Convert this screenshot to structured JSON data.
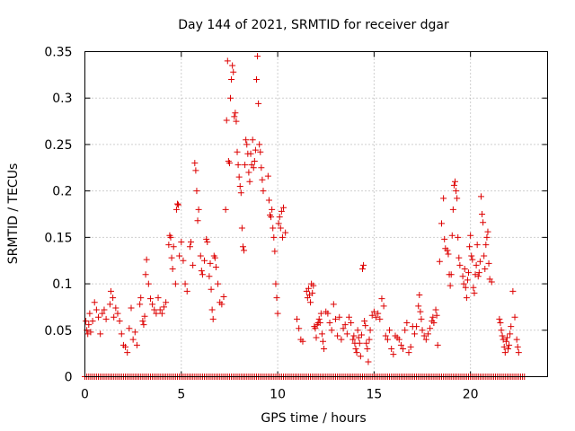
{
  "chart_data": {
    "type": "scatter",
    "title": "Day 144 of 2021, SRMTID for receiver dgar",
    "xlabel": "GPS time / hours",
    "ylabel": "SRMTID / TECUs",
    "xlim": [
      0,
      24
    ],
    "ylim": [
      0,
      0.35
    ],
    "x_ticks": [
      0,
      5,
      10,
      15,
      20
    ],
    "x_tick_labels": [
      "0",
      "5",
      "10",
      "15",
      "20"
    ],
    "y_ticks": [
      0,
      0.05,
      0.1,
      0.15,
      0.2,
      0.25,
      0.3,
      0.35
    ],
    "y_tick_labels": [
      "0",
      "0.05",
      "0.1",
      "0.15",
      "0.2",
      "0.25",
      "0.3",
      "0.35"
    ],
    "grid": true,
    "legend": "none",
    "marker": "+",
    "color": "#dd0000",
    "baseline": {
      "y": 0,
      "x_start": 0.0,
      "x_end": 22.8,
      "step": 0.1
    },
    "series": [
      {
        "name": "SRMTID",
        "points": [
          [
            0.05,
            0.06
          ],
          [
            0.1,
            0.05
          ],
          [
            0.15,
            0.046
          ],
          [
            0.2,
            0.056
          ],
          [
            0.25,
            0.068
          ],
          [
            0.3,
            0.048
          ],
          [
            0.4,
            0.06
          ],
          [
            0.5,
            0.08
          ],
          [
            0.6,
            0.072
          ],
          [
            0.7,
            0.064
          ],
          [
            0.8,
            0.046
          ],
          [
            0.9,
            0.068
          ],
          [
            1.0,
            0.072
          ],
          [
            1.1,
            0.062
          ],
          [
            1.3,
            0.078
          ],
          [
            1.35,
            0.092
          ],
          [
            1.45,
            0.085
          ],
          [
            1.5,
            0.064
          ],
          [
            1.6,
            0.074
          ],
          [
            1.7,
            0.068
          ],
          [
            1.8,
            0.06
          ],
          [
            1.9,
            0.046
          ],
          [
            2.0,
            0.034
          ],
          [
            2.1,
            0.032
          ],
          [
            2.2,
            0.026
          ],
          [
            2.3,
            0.052
          ],
          [
            2.4,
            0.074
          ],
          [
            2.5,
            0.04
          ],
          [
            2.6,
            0.048
          ],
          [
            2.7,
            0.034
          ],
          [
            2.85,
            0.078
          ],
          [
            2.9,
            0.085
          ],
          [
            3.0,
            0.06
          ],
          [
            3.05,
            0.056
          ],
          [
            3.1,
            0.065
          ],
          [
            3.15,
            0.11
          ],
          [
            3.2,
            0.126
          ],
          [
            3.3,
            0.1
          ],
          [
            3.4,
            0.084
          ],
          [
            3.5,
            0.078
          ],
          [
            3.6,
            0.072
          ],
          [
            3.7,
            0.068
          ],
          [
            3.8,
            0.085
          ],
          [
            3.9,
            0.072
          ],
          [
            4.0,
            0.068
          ],
          [
            4.1,
            0.075
          ],
          [
            4.2,
            0.08
          ],
          [
            4.35,
            0.142
          ],
          [
            4.4,
            0.152
          ],
          [
            4.45,
            0.15
          ],
          [
            4.5,
            0.128
          ],
          [
            4.55,
            0.116
          ],
          [
            4.6,
            0.14
          ],
          [
            4.7,
            0.1
          ],
          [
            4.75,
            0.18
          ],
          [
            4.8,
            0.186
          ],
          [
            4.85,
            0.185
          ],
          [
            4.9,
            0.13
          ],
          [
            5.0,
            0.145
          ],
          [
            5.1,
            0.125
          ],
          [
            5.2,
            0.1
          ],
          [
            5.3,
            0.092
          ],
          [
            5.45,
            0.14
          ],
          [
            5.5,
            0.145
          ],
          [
            5.6,
            0.12
          ],
          [
            5.7,
            0.23
          ],
          [
            5.75,
            0.222
          ],
          [
            5.8,
            0.2
          ],
          [
            5.85,
            0.168
          ],
          [
            5.9,
            0.18
          ],
          [
            6.0,
            0.13
          ],
          [
            6.05,
            0.114
          ],
          [
            6.1,
            0.11
          ],
          [
            6.2,
            0.125
          ],
          [
            6.3,
            0.148
          ],
          [
            6.35,
            0.145
          ],
          [
            6.45,
            0.108
          ],
          [
            6.5,
            0.122
          ],
          [
            6.55,
            0.094
          ],
          [
            6.6,
            0.072
          ],
          [
            6.65,
            0.062
          ],
          [
            6.7,
            0.13
          ],
          [
            6.75,
            0.128
          ],
          [
            6.8,
            0.118
          ],
          [
            6.9,
            0.1
          ],
          [
            7.0,
            0.08
          ],
          [
            7.1,
            0.078
          ],
          [
            7.2,
            0.086
          ],
          [
            7.3,
            0.18
          ],
          [
            7.35,
            0.276
          ],
          [
            7.4,
            0.34
          ],
          [
            7.45,
            0.232
          ],
          [
            7.5,
            0.23
          ],
          [
            7.55,
            0.3
          ],
          [
            7.6,
            0.32
          ],
          [
            7.65,
            0.335
          ],
          [
            7.7,
            0.328
          ],
          [
            7.75,
            0.28
          ],
          [
            7.8,
            0.284
          ],
          [
            7.85,
            0.275
          ],
          [
            7.9,
            0.242
          ],
          [
            7.95,
            0.228
          ],
          [
            8.0,
            0.215
          ],
          [
            8.05,
            0.205
          ],
          [
            8.1,
            0.198
          ],
          [
            8.15,
            0.16
          ],
          [
            8.2,
            0.14
          ],
          [
            8.25,
            0.136
          ],
          [
            8.3,
            0.228
          ],
          [
            8.35,
            0.255
          ],
          [
            8.4,
            0.25
          ],
          [
            8.45,
            0.24
          ],
          [
            8.5,
            0.22
          ],
          [
            8.55,
            0.21
          ],
          [
            8.6,
            0.24
          ],
          [
            8.65,
            0.228
          ],
          [
            8.7,
            0.255
          ],
          [
            8.75,
            0.225
          ],
          [
            8.8,
            0.232
          ],
          [
            8.85,
            0.244
          ],
          [
            8.9,
            0.32
          ],
          [
            8.95,
            0.345
          ],
          [
            9.0,
            0.294
          ],
          [
            9.05,
            0.25
          ],
          [
            9.1,
            0.242
          ],
          [
            9.15,
            0.225
          ],
          [
            9.2,
            0.212
          ],
          [
            9.25,
            0.2
          ],
          [
            9.5,
            0.216
          ],
          [
            9.55,
            0.19
          ],
          [
            9.6,
            0.174
          ],
          [
            9.65,
            0.172
          ],
          [
            9.7,
            0.18
          ],
          [
            9.75,
            0.16
          ],
          [
            9.8,
            0.15
          ],
          [
            9.85,
            0.135
          ],
          [
            9.9,
            0.1
          ],
          [
            9.95,
            0.085
          ],
          [
            10.0,
            0.068
          ],
          [
            10.05,
            0.165
          ],
          [
            10.1,
            0.172
          ],
          [
            10.15,
            0.16
          ],
          [
            10.2,
            0.178
          ],
          [
            10.25,
            0.15
          ],
          [
            10.3,
            0.182
          ],
          [
            10.4,
            0.155
          ],
          [
            11.0,
            0.062
          ],
          [
            11.1,
            0.052
          ],
          [
            11.2,
            0.04
          ],
          [
            11.3,
            0.038
          ],
          [
            11.5,
            0.092
          ],
          [
            11.55,
            0.085
          ],
          [
            11.6,
            0.095
          ],
          [
            11.65,
            0.088
          ],
          [
            11.7,
            0.08
          ],
          [
            11.75,
            0.1
          ],
          [
            11.8,
            0.09
          ],
          [
            11.85,
            0.098
          ],
          [
            11.9,
            0.054
          ],
          [
            11.95,
            0.052
          ],
          [
            12.0,
            0.042
          ],
          [
            12.05,
            0.056
          ],
          [
            12.1,
            0.058
          ],
          [
            12.15,
            0.062
          ],
          [
            12.2,
            0.058
          ],
          [
            12.25,
            0.068
          ],
          [
            12.3,
            0.046
          ],
          [
            12.35,
            0.038
          ],
          [
            12.4,
            0.03
          ],
          [
            12.5,
            0.07
          ],
          [
            12.6,
            0.068
          ],
          [
            12.7,
            0.058
          ],
          [
            12.8,
            0.05
          ],
          [
            12.9,
            0.078
          ],
          [
            13.0,
            0.062
          ],
          [
            13.1,
            0.044
          ],
          [
            13.2,
            0.064
          ],
          [
            13.3,
            0.04
          ],
          [
            13.4,
            0.052
          ],
          [
            13.5,
            0.056
          ],
          [
            13.6,
            0.046
          ],
          [
            13.7,
            0.064
          ],
          [
            13.8,
            0.058
          ],
          [
            13.9,
            0.04
          ],
          [
            13.95,
            0.044
          ],
          [
            14.0,
            0.036
          ],
          [
            14.05,
            0.03
          ],
          [
            14.1,
            0.026
          ],
          [
            14.15,
            0.05
          ],
          [
            14.2,
            0.042
          ],
          [
            14.25,
            0.036
          ],
          [
            14.3,
            0.022
          ],
          [
            14.35,
            0.045
          ],
          [
            14.4,
            0.116
          ],
          [
            14.45,
            0.12
          ],
          [
            14.5,
            0.06
          ],
          [
            14.55,
            0.055
          ],
          [
            14.6,
            0.036
          ],
          [
            14.65,
            0.03
          ],
          [
            14.7,
            0.016
          ],
          [
            14.75,
            0.04
          ],
          [
            14.8,
            0.05
          ],
          [
            14.9,
            0.066
          ],
          [
            15.0,
            0.07
          ],
          [
            15.1,
            0.064
          ],
          [
            15.2,
            0.068
          ],
          [
            15.3,
            0.062
          ],
          [
            15.4,
            0.084
          ],
          [
            15.5,
            0.076
          ],
          [
            15.6,
            0.044
          ],
          [
            15.7,
            0.04
          ],
          [
            15.8,
            0.05
          ],
          [
            15.9,
            0.03
          ],
          [
            16.0,
            0.024
          ],
          [
            16.1,
            0.044
          ],
          [
            16.2,
            0.042
          ],
          [
            16.3,
            0.04
          ],
          [
            16.4,
            0.034
          ],
          [
            16.5,
            0.03
          ],
          [
            16.6,
            0.05
          ],
          [
            16.7,
            0.058
          ],
          [
            16.8,
            0.026
          ],
          [
            16.9,
            0.032
          ],
          [
            17.0,
            0.054
          ],
          [
            17.1,
            0.046
          ],
          [
            17.2,
            0.054
          ],
          [
            17.3,
            0.076
          ],
          [
            17.35,
            0.088
          ],
          [
            17.4,
            0.07
          ],
          [
            17.45,
            0.062
          ],
          [
            17.5,
            0.05
          ],
          [
            17.6,
            0.044
          ],
          [
            17.7,
            0.04
          ],
          [
            17.8,
            0.046
          ],
          [
            17.9,
            0.052
          ],
          [
            18.0,
            0.06
          ],
          [
            18.05,
            0.064
          ],
          [
            18.1,
            0.058
          ],
          [
            18.2,
            0.072
          ],
          [
            18.25,
            0.066
          ],
          [
            18.3,
            0.034
          ],
          [
            18.4,
            0.124
          ],
          [
            18.5,
            0.165
          ],
          [
            18.6,
            0.192
          ],
          [
            18.65,
            0.148
          ],
          [
            18.7,
            0.138
          ],
          [
            18.8,
            0.136
          ],
          [
            18.85,
            0.132
          ],
          [
            18.9,
            0.11
          ],
          [
            18.95,
            0.098
          ],
          [
            19.0,
            0.11
          ],
          [
            19.05,
            0.152
          ],
          [
            19.1,
            0.18
          ],
          [
            19.15,
            0.206
          ],
          [
            19.2,
            0.21
          ],
          [
            19.25,
            0.2
          ],
          [
            19.3,
            0.192
          ],
          [
            19.35,
            0.15
          ],
          [
            19.4,
            0.128
          ],
          [
            19.45,
            0.12
          ],
          [
            19.6,
            0.108
          ],
          [
            19.65,
            0.1
          ],
          [
            19.7,
            0.116
          ],
          [
            19.75,
            0.096
          ],
          [
            19.8,
            0.085
          ],
          [
            19.85,
            0.104
          ],
          [
            19.9,
            0.112
          ],
          [
            19.95,
            0.14
          ],
          [
            20.0,
            0.152
          ],
          [
            20.05,
            0.13
          ],
          [
            20.1,
            0.126
          ],
          [
            20.15,
            0.096
          ],
          [
            20.2,
            0.09
          ],
          [
            20.25,
            0.11
          ],
          [
            20.3,
            0.12
          ],
          [
            20.35,
            0.142
          ],
          [
            20.4,
            0.108
          ],
          [
            20.45,
            0.112
          ],
          [
            20.5,
            0.124
          ],
          [
            20.55,
            0.194
          ],
          [
            20.6,
            0.175
          ],
          [
            20.65,
            0.166
          ],
          [
            20.7,
            0.13
          ],
          [
            20.75,
            0.116
          ],
          [
            20.8,
            0.142
          ],
          [
            20.85,
            0.15
          ],
          [
            20.9,
            0.156
          ],
          [
            20.95,
            0.122
          ],
          [
            21.0,
            0.105
          ],
          [
            21.1,
            0.102
          ],
          [
            21.5,
            0.062
          ],
          [
            21.55,
            0.058
          ],
          [
            21.6,
            0.05
          ],
          [
            21.65,
            0.044
          ],
          [
            21.7,
            0.04
          ],
          [
            21.75,
            0.032
          ],
          [
            21.8,
            0.026
          ],
          [
            21.85,
            0.038
          ],
          [
            21.9,
            0.042
          ],
          [
            21.95,
            0.03
          ],
          [
            22.0,
            0.034
          ],
          [
            22.05,
            0.046
          ],
          [
            22.1,
            0.054
          ],
          [
            22.2,
            0.092
          ],
          [
            22.3,
            0.064
          ],
          [
            22.4,
            0.04
          ],
          [
            22.45,
            0.032
          ],
          [
            22.5,
            0.026
          ]
        ]
      }
    ]
  }
}
